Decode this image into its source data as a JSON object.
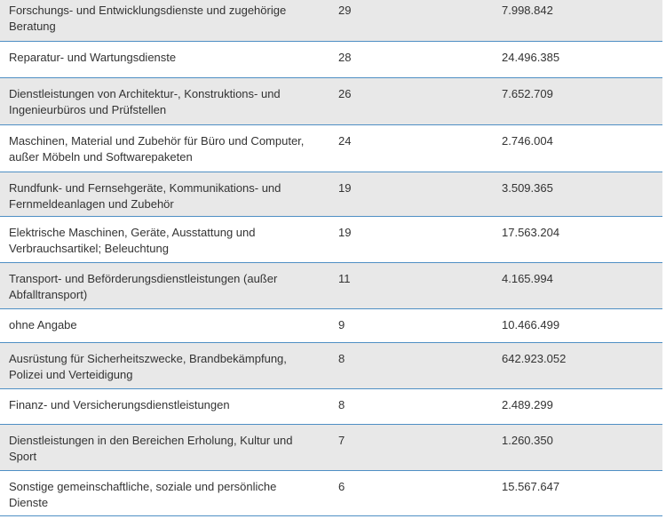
{
  "table": {
    "rows": [
      [
        "Forschungs- und Entwicklungsdienste und zugehörige Beratung",
        "29",
        "7.998.842"
      ],
      [
        "Reparatur- und Wartungsdienste",
        "28",
        "24.496.385"
      ],
      [
        "Dienstleistungen von Architektur-, Konstruktions- und Ingenieurbüros und Prüfstellen",
        "26",
        "7.652.709"
      ],
      [
        "Maschinen, Material und Zubehör für Büro und Computer, außer Möbeln und Softwarepaketen",
        "24",
        "2.746.004"
      ],
      [
        "Rundfunk- und Fernsehgeräte, Kommunikations- und Fernmeldeanlagen und Zubehör",
        "19",
        "3.509.365"
      ],
      [
        "Elektrische Maschinen, Geräte, Ausstattung und Verbrauchsartikel; Beleuchtung",
        "19",
        "17.563.204"
      ],
      [
        "Transport- und Beförderungsdienstleistungen (außer Abfalltransport)",
        "11",
        "4.165.994"
      ],
      [
        "ohne Angabe",
        "9",
        "10.466.499"
      ],
      [
        "Ausrüstung für Sicherheitszwecke, Brandbekämpfung, Polizei und Verteidigung",
        "8",
        "642.923.052"
      ],
      [
        "Finanz- und Versicherungsdienstleistungen",
        "8",
        "2.489.299"
      ],
      [
        "Dienstleistungen in den Bereichen Erholung, Kultur und Sport",
        "7",
        "1.260.350"
      ],
      [
        "Sonstige gemeinschaftliche, soziale und persönliche Dienste",
        "6",
        "15.567.647"
      ]
    ]
  }
}
